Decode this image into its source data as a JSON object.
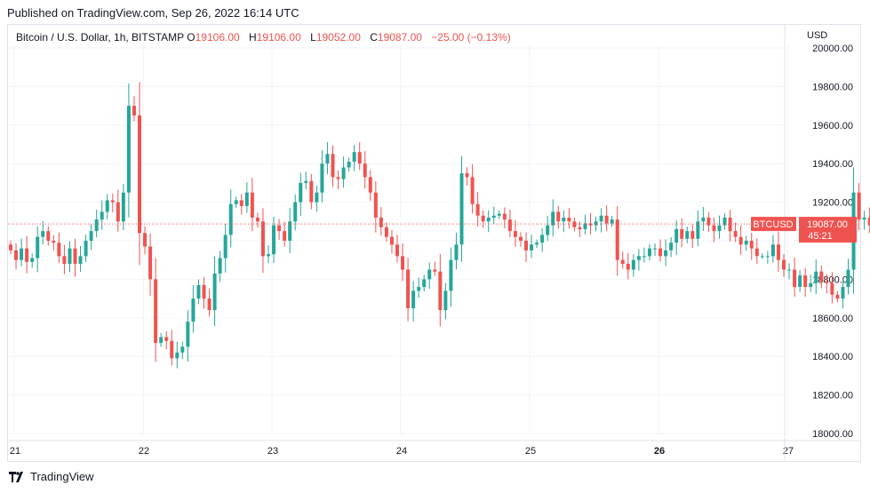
{
  "header": {
    "published": "Published on TradingView.com, Sep 26, 2022 16:14 UTC"
  },
  "legend": {
    "symbol": "Bitcoin / U.S. Dollar, 1h, BITSTAMP",
    "o_label": "O",
    "o_value": "19106.00",
    "h_label": "H",
    "h_value": "19106.00",
    "l_label": "L",
    "l_value": "19052.00",
    "c_label": "C",
    "c_value": "19087.00",
    "change": "−25.00 (−0.13%)"
  },
  "axis": {
    "currency": "USD"
  },
  "price_tag": {
    "symbol": "BTCUSD",
    "price": "19087.00",
    "countdown": "45:21"
  },
  "footer": {
    "brand": "TradingView"
  },
  "colors": {
    "up": "#26a69a",
    "down": "#ef5350",
    "grid": "#f0f3fa",
    "axis_text": "#131722",
    "price_line": "#ef5350"
  },
  "chart_data": {
    "type": "candlestick",
    "x_labels": [
      "21",
      "22",
      "23",
      "24",
      "25",
      "26",
      "27"
    ],
    "x_label_bold": [
      "26"
    ],
    "y_ticks": [
      18000,
      18200,
      18400,
      18600,
      18800,
      19000,
      19200,
      19400,
      19600,
      19800,
      20000
    ],
    "y_tick_labels": [
      "18000.00",
      "18200.00",
      "18400.00",
      "18600.00",
      "18800.00",
      "",
      "19200.00",
      "19400.00",
      "19600.00",
      "19800.00",
      "20000.00"
    ],
    "ylim": [
      18000,
      20000
    ],
    "last_price": 19087,
    "candles_per_day": 24,
    "first_candle_offset": 0,
    "closes": [
      18950,
      18900,
      18960,
      18890,
      18910,
      19020,
      19050,
      19000,
      18990,
      18920,
      18880,
      18960,
      18880,
      18920,
      19000,
      19050,
      19110,
      19150,
      19210,
      19200,
      19100,
      19250,
      19700,
      19650,
      19040,
      18970,
      18800,
      18470,
      18500,
      18480,
      18390,
      18420,
      18450,
      18580,
      18700,
      18770,
      18700,
      18640,
      18830,
      18910,
      19030,
      19190,
      19210,
      19180,
      19250,
      19120,
      19100,
      18920,
      18930,
      19080,
      19050,
      19000,
      19100,
      19200,
      19300,
      19310,
      19200,
      19250,
      19400,
      19450,
      19330,
      19320,
      19380,
      19410,
      19460,
      19400,
      19330,
      19250,
      19120,
      19070,
      19020,
      18980,
      18920,
      18850,
      18650,
      18740,
      18760,
      18800,
      18850,
      18840,
      18640,
      18740,
      18900,
      18980,
      19350,
      19330,
      19190,
      19130,
      19100,
      19120,
      19130,
      19140,
      19110,
      19050,
      19020,
      19000,
      18950,
      18980,
      18990,
      19030,
      19080,
      19150,
      19100,
      19120,
      19100,
      19070,
      19060,
      19090,
      19080,
      19100,
      19130,
      19090,
      19110,
      18900,
      18880,
      18850,
      18900,
      18920,
      18920,
      18960,
      18960,
      18920,
      18950,
      18990,
      19060,
      19010,
      19050,
      19010,
      19100,
      19120,
      19080,
      19050,
      19080,
      19120,
      19050,
      19020,
      18980,
      19000,
      18960,
      18920,
      18920,
      18920,
      18980,
      18900,
      18850,
      18850,
      18760,
      18820,
      18760,
      18780,
      18840,
      18790,
      18780,
      18720,
      18700,
      18760,
      18850,
      19250,
      19110,
      19120,
      19080,
      18920,
      19120,
      19200,
      19150,
      19120,
      19100
    ]
  }
}
